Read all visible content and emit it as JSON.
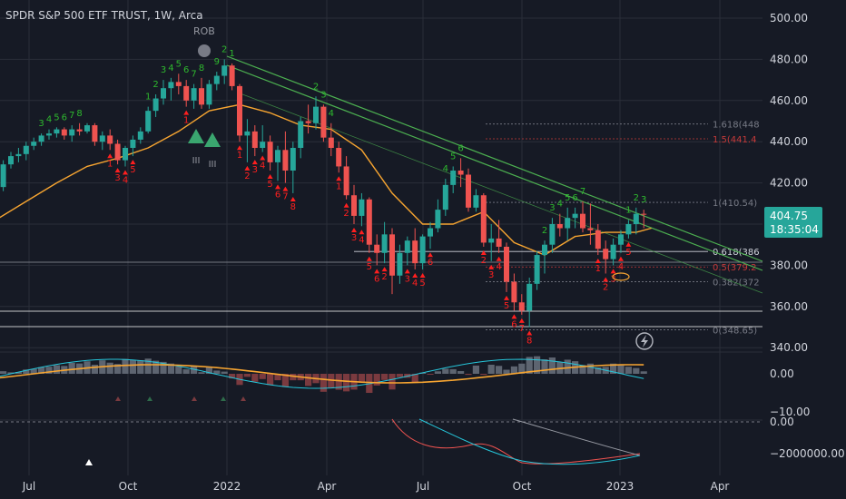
{
  "header": {
    "title": "SPDR S&P 500 ETF TRUST, 1W, Arca"
  },
  "colors": {
    "background": "#161a25",
    "up": "#26a69a",
    "down": "#ef5350",
    "ma": "#f7a531",
    "trendline": "#4caf50",
    "seq_up": "#2eb82e",
    "seq_down": "#ff1f1f",
    "grid": "#2a2e39",
    "axis_text": "#d1d4dc"
  },
  "price_axis": {
    "ticks": [
      "500.00",
      "480.00",
      "460.00",
      "440.00",
      "420.00",
      "400.00",
      "380.00",
      "360.00",
      "340.00"
    ]
  },
  "time_axis": {
    "labels": [
      "Jul",
      "Oct",
      "2022",
      "Apr",
      "Jul",
      "Oct",
      "2023",
      "Apr"
    ]
  },
  "price_badge": {
    "price": "404.75",
    "countdown": "18:35:04"
  },
  "rob_label": "ROB",
  "pattern_labels": [
    "III",
    "III"
  ],
  "fib_levels": [
    {
      "label": "1.618(448",
      "price": 448.6,
      "color": "#787b86"
    },
    {
      "label": "1.5(441.4",
      "price": 441.4,
      "color": "#c63a3a"
    },
    {
      "label": "1(410.54)",
      "price": 410.54,
      "color": "#787b86"
    },
    {
      "label": "0.618(386",
      "price": 386.7,
      "color": "#d1d4dc"
    },
    {
      "label": "0.5(379.2",
      "price": 379.2,
      "color": "#c63a3a"
    },
    {
      "label": "0.382(372",
      "price": 372.0,
      "color": "#787b86"
    },
    {
      "label": "0(348.65)",
      "price": 348.65,
      "color": "#787b86"
    }
  ],
  "osc1_ticks": [
    "0.00",
    "−10.00"
  ],
  "osc2_ticks": [
    "0.00",
    "−2000000.00"
  ],
  "chart_data": {
    "type": "candlestick",
    "title": "SPDR S&P 500 ETF TRUST, 1W, Arca",
    "series": [
      {
        "name": "ohlc",
        "values": [
          [
            -2,
            420,
            427,
            416,
            418
          ],
          [
            -1,
            418,
            431,
            416,
            429
          ],
          [
            0,
            429,
            435,
            427,
            433
          ],
          [
            1,
            433,
            437,
            430,
            434
          ],
          [
            2,
            434,
            440,
            431,
            438
          ],
          [
            3,
            438,
            442,
            436,
            440
          ],
          [
            4,
            440,
            444,
            438,
            443
          ],
          [
            5,
            443,
            446,
            441,
            444
          ],
          [
            6,
            444,
            447,
            442,
            446
          ],
          [
            7,
            446,
            447,
            441,
            443
          ],
          [
            8,
            443,
            448,
            440,
            446
          ],
          [
            9,
            446,
            449,
            443,
            445
          ],
          [
            10,
            445,
            449,
            444,
            448
          ],
          [
            11,
            448,
            449,
            438,
            440
          ],
          [
            12,
            440,
            445,
            436,
            443
          ],
          [
            13,
            443,
            446,
            436,
            439
          ],
          [
            14,
            439,
            441,
            429,
            431
          ],
          [
            15,
            431,
            438,
            428,
            437
          ],
          [
            16,
            437,
            443,
            433,
            441
          ],
          [
            17,
            441,
            447,
            439,
            445
          ],
          [
            18,
            445,
            457,
            444,
            455
          ],
          [
            19,
            455,
            463,
            452,
            461
          ],
          [
            20,
            461,
            470,
            458,
            466
          ],
          [
            21,
            466,
            471,
            460,
            469
          ],
          [
            22,
            469,
            473,
            463,
            467
          ],
          [
            23,
            467,
            470,
            457,
            460
          ],
          [
            24,
            460,
            468,
            456,
            466
          ],
          [
            25,
            466,
            471,
            456,
            458
          ],
          [
            26,
            458,
            470,
            456,
            468
          ],
          [
            27,
            468,
            474,
            465,
            472
          ],
          [
            28,
            472,
            480,
            468,
            477
          ],
          [
            29,
            477,
            478,
            465,
            467
          ],
          [
            30,
            467,
            468,
            440,
            443
          ],
          [
            31,
            443,
            451,
            430,
            445
          ],
          [
            32,
            445,
            448,
            433,
            437
          ],
          [
            33,
            437,
            448,
            435,
            440
          ],
          [
            34,
            440,
            443,
            426,
            430
          ],
          [
            35,
            430,
            438,
            421,
            436
          ],
          [
            36,
            436,
            445,
            420,
            426
          ],
          [
            37,
            426,
            440,
            415,
            437
          ],
          [
            38,
            437,
            452,
            432,
            450
          ],
          [
            39,
            450,
            458,
            444,
            449
          ],
          [
            40,
            449,
            462,
            446,
            457
          ],
          [
            41,
            457,
            458,
            440,
            442
          ],
          [
            42,
            442,
            449,
            433,
            437
          ],
          [
            43,
            437,
            440,
            425,
            428
          ],
          [
            44,
            428,
            433,
            412,
            414
          ],
          [
            45,
            414,
            419,
            400,
            404
          ],
          [
            46,
            404,
            415,
            399,
            412
          ],
          [
            47,
            412,
            413,
            386,
            390
          ],
          [
            48,
            390,
            395,
            380,
            386
          ],
          [
            49,
            386,
            401,
            381,
            395
          ],
          [
            50,
            395,
            398,
            366,
            375
          ],
          [
            51,
            375,
            390,
            371,
            386
          ],
          [
            52,
            386,
            394,
            380,
            392
          ],
          [
            53,
            392,
            398,
            378,
            381
          ],
          [
            54,
            381,
            395,
            378,
            394
          ],
          [
            55,
            394,
            401,
            388,
            398
          ],
          [
            56,
            398,
            412,
            396,
            407
          ],
          [
            57,
            407,
            422,
            404,
            419
          ],
          [
            58,
            419,
            428,
            415,
            426
          ],
          [
            59,
            426,
            432,
            418,
            424
          ],
          [
            60,
            424,
            427,
            406,
            408
          ],
          [
            61,
            408,
            417,
            406,
            414
          ],
          [
            62,
            414,
            415,
            389,
            391
          ],
          [
            63,
            391,
            400,
            382,
            393
          ],
          [
            64,
            393,
            402,
            386,
            389
          ],
          [
            65,
            389,
            391,
            367,
            372
          ],
          [
            66,
            372,
            376,
            358,
            362
          ],
          [
            67,
            362,
            366,
            356,
            358
          ],
          [
            68,
            358,
            374,
            350,
            371
          ],
          [
            69,
            371,
            387,
            368,
            385
          ],
          [
            70,
            385,
            392,
            376,
            390
          ],
          [
            71,
            390,
            403,
            386,
            400
          ],
          [
            72,
            400,
            405,
            394,
            398
          ],
          [
            73,
            398,
            408,
            392,
            403
          ],
          [
            74,
            403,
            408,
            398,
            405
          ],
          [
            75,
            405,
            411,
            396,
            398
          ],
          [
            76,
            398,
            410,
            390,
            397
          ],
          [
            77,
            397,
            400,
            385,
            388
          ],
          [
            78,
            388,
            392,
            376,
            383
          ],
          [
            79,
            383,
            393,
            380,
            390
          ],
          [
            80,
            390,
            397,
            386,
            395
          ],
          [
            81,
            395,
            402,
            393,
            400
          ],
          [
            82,
            400,
            408,
            395,
            405
          ],
          [
            83,
            405,
            407,
            398,
            404.75
          ]
        ]
      },
      {
        "name": "moving_average",
        "values": [
          [
            -2,
            402
          ],
          [
            2,
            411
          ],
          [
            6,
            420
          ],
          [
            10,
            428
          ],
          [
            14,
            432
          ],
          [
            18,
            437
          ],
          [
            22,
            445
          ],
          [
            26,
            455
          ],
          [
            30,
            458
          ],
          [
            34,
            454
          ],
          [
            38,
            448
          ],
          [
            42,
            446
          ],
          [
            46,
            436
          ],
          [
            50,
            415
          ],
          [
            54,
            400
          ],
          [
            58,
            400
          ],
          [
            62,
            406
          ],
          [
            66,
            391
          ],
          [
            70,
            385
          ],
          [
            74,
            394
          ],
          [
            78,
            396
          ],
          [
            82,
            396
          ],
          [
            84,
            398
          ]
        ]
      }
    ],
    "price_ticks": [
      500,
      480,
      460,
      440,
      420,
      400,
      380,
      360,
      340
    ],
    "ylim": [
      336,
      502
    ]
  }
}
